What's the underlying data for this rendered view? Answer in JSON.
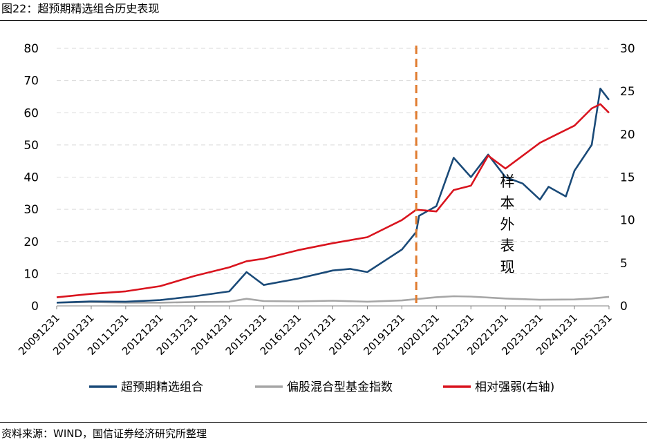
{
  "header": {
    "title": "图22：超预期精选组合历史表现"
  },
  "footer": {
    "source": "资料来源：WIND，国信证券经济研究所整理"
  },
  "colors": {
    "portfolio": "#1a4a78",
    "fund_index": "#a6a6a6",
    "relative": "#d9141e",
    "divider": "#e07b2e",
    "grid": "#d9d9d9"
  },
  "chart_data": {
    "type": "line",
    "x": [
      "20091231",
      "20101231",
      "20111231",
      "20121231",
      "20131231",
      "20141231",
      "20151231",
      "20161231",
      "20171231",
      "20181231",
      "20191231",
      "20201231",
      "20211231",
      "20221231",
      "20231231",
      "20241231",
      "20251231"
    ],
    "left_axis": {
      "ylim": [
        0,
        80
      ],
      "ticks": [
        "0",
        "10",
        "20",
        "30",
        "40",
        "50",
        "60",
        "70",
        "80"
      ]
    },
    "right_axis": {
      "ylim": [
        0,
        30
      ],
      "ticks": [
        "0",
        "5",
        "10",
        "15",
        "20",
        "25",
        "30"
      ]
    },
    "grid": "horizontal dashed",
    "legend_position": "bottom",
    "annotation": {
      "text": [
        "样",
        "本",
        "外",
        "表",
        "现"
      ],
      "divider_date": "2020-05"
    },
    "series": [
      {
        "name": "超预期精选组合",
        "axis": "left",
        "points": [
          [
            "2009-12",
            1.0
          ],
          [
            "2010-12",
            1.4
          ],
          [
            "2011-12",
            1.3
          ],
          [
            "2012-12",
            1.8
          ],
          [
            "2013-12",
            3.0
          ],
          [
            "2014-12",
            4.5
          ],
          [
            "2015-06",
            10.5
          ],
          [
            "2015-12",
            6.5
          ],
          [
            "2016-12",
            8.5
          ],
          [
            "2017-12",
            11.0
          ],
          [
            "2018-06",
            11.5
          ],
          [
            "2018-12",
            10.5
          ],
          [
            "2019-06",
            14.0
          ],
          [
            "2019-12",
            17.5
          ],
          [
            "2020-05",
            23.0
          ],
          [
            "2020-06",
            28.0
          ],
          [
            "2020-12",
            31.0
          ],
          [
            "2021-06",
            46.0
          ],
          [
            "2021-12",
            40.0
          ],
          [
            "2022-06",
            47.0
          ],
          [
            "2022-12",
            40.0
          ],
          [
            "2023-06",
            38.0
          ],
          [
            "2023-12",
            33.0
          ],
          [
            "2024-03",
            37.0
          ],
          [
            "2024-09",
            34.0
          ],
          [
            "2024-12",
            42.0
          ],
          [
            "2025-06",
            50.0
          ],
          [
            "2025-09",
            67.5
          ],
          [
            "2025-12",
            64.0
          ]
        ]
      },
      {
        "name": "偏股混合型基金指数",
        "axis": "left",
        "points": [
          [
            "2009-12",
            1.0
          ],
          [
            "2010-12",
            1.2
          ],
          [
            "2011-12",
            1.0
          ],
          [
            "2012-12",
            1.0
          ],
          [
            "2013-12",
            1.2
          ],
          [
            "2014-12",
            1.3
          ],
          [
            "2015-06",
            2.2
          ],
          [
            "2015-12",
            1.5
          ],
          [
            "2016-12",
            1.4
          ],
          [
            "2017-12",
            1.6
          ],
          [
            "2018-12",
            1.3
          ],
          [
            "2019-12",
            1.7
          ],
          [
            "2020-12",
            2.7
          ],
          [
            "2021-06",
            3.0
          ],
          [
            "2021-12",
            2.9
          ],
          [
            "2022-12",
            2.3
          ],
          [
            "2023-12",
            1.9
          ],
          [
            "2024-12",
            2.0
          ],
          [
            "2025-06",
            2.3
          ],
          [
            "2025-12",
            2.8
          ]
        ]
      },
      {
        "name": "相对强弱(右轴)",
        "axis": "right",
        "points": [
          [
            "2009-12",
            1.0
          ],
          [
            "2010-12",
            1.4
          ],
          [
            "2011-12",
            1.7
          ],
          [
            "2012-12",
            2.3
          ],
          [
            "2013-12",
            3.5
          ],
          [
            "2014-12",
            4.5
          ],
          [
            "2015-06",
            5.2
          ],
          [
            "2015-12",
            5.5
          ],
          [
            "2016-12",
            6.5
          ],
          [
            "2017-12",
            7.3
          ],
          [
            "2018-12",
            8.0
          ],
          [
            "2019-12",
            10.0
          ],
          [
            "2020-05",
            11.2
          ],
          [
            "2020-12",
            11.0
          ],
          [
            "2021-06",
            13.5
          ],
          [
            "2021-12",
            14.0
          ],
          [
            "2022-06",
            17.5
          ],
          [
            "2022-12",
            16.0
          ],
          [
            "2023-06",
            17.5
          ],
          [
            "2023-12",
            19.0
          ],
          [
            "2024-06",
            20.0
          ],
          [
            "2024-12",
            21.0
          ],
          [
            "2025-06",
            23.0
          ],
          [
            "2025-09",
            23.5
          ],
          [
            "2025-12",
            22.5
          ]
        ]
      }
    ]
  }
}
